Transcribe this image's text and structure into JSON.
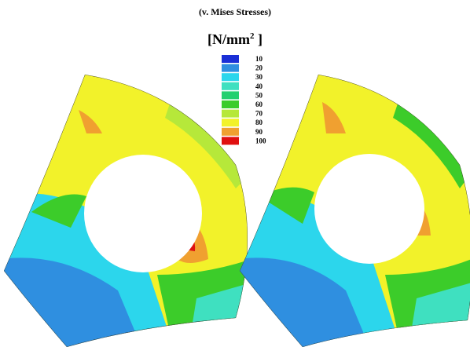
{
  "title": "(v. Mises Stresses)",
  "unit": {
    "base": "[N/mm",
    "sup": "2",
    "close": "]"
  },
  "legend": [
    {
      "label": "10",
      "color": "#1a2fd6"
    },
    {
      "label": "20",
      "color": "#2f8fe0"
    },
    {
      "label": "30",
      "color": "#2cd6ec"
    },
    {
      "label": "40",
      "color": "#3fe0c0"
    },
    {
      "label": "50",
      "color": "#22d070"
    },
    {
      "label": "60",
      "color": "#3ccc2a"
    },
    {
      "label": "70",
      "color": "#b6e83a"
    },
    {
      "label": "80",
      "color": "#f2f22a"
    },
    {
      "label": "90",
      "color": "#f0a030"
    },
    {
      "label": "100",
      "color": "#e01010"
    }
  ]
}
